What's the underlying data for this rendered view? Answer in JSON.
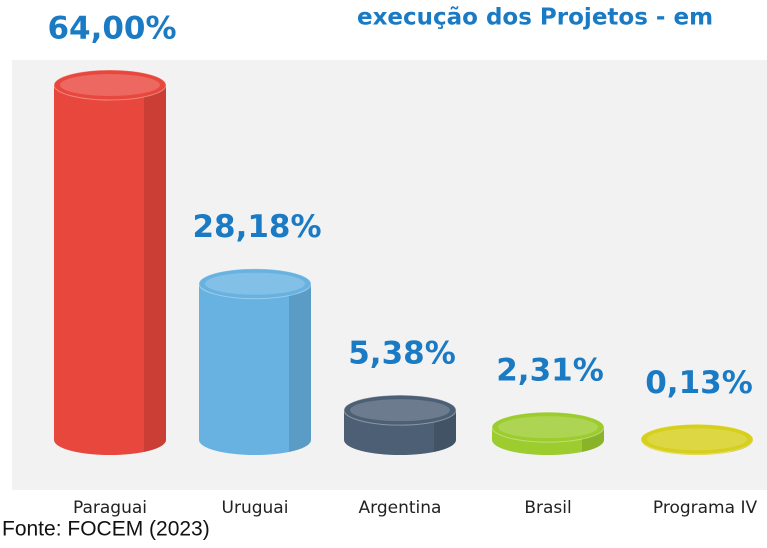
{
  "chart_data": {
    "type": "bar",
    "title": "execução dos Projetos - em",
    "categories": [
      "Paraguai",
      "Uruguai",
      "Argentina",
      "Brasil",
      "Programa IV"
    ],
    "values": [
      64,
      28.18,
      5.38,
      2.31,
      0.13
    ],
    "value_labels": [
      "64,00%",
      "28,18%",
      "5,38%",
      "2,31%",
      "0,13%"
    ],
    "colors": [
      "#e8473d",
      "#68b2e2",
      "#4c5f74",
      "#9ccc2e",
      "#d6cf1c"
    ],
    "source": "Fonte: FOCEM (2023)"
  }
}
